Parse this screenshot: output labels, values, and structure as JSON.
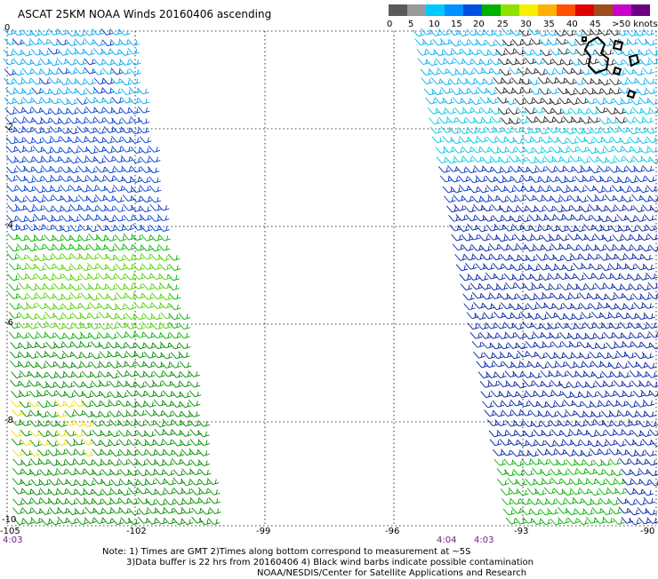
{
  "title": "ASCAT 25KM NOAA Winds 20160406 ascending",
  "legend": {
    "colors": [
      "#5a5a5a",
      "#9a9a9a",
      "#00c8ff",
      "#0090ff",
      "#0050e0",
      "#00b000",
      "#90e000",
      "#f8f000",
      "#ffb000",
      "#ff5000",
      "#e00000",
      "#a04a20",
      "#c800c8",
      "#6a0080"
    ],
    "labels": [
      "0",
      "5",
      "10",
      "15",
      "20",
      "25",
      "30",
      "35",
      "40",
      "45",
      ">50 knots"
    ]
  },
  "axes": {
    "x_ticks": [
      "-105",
      "-102",
      "-99",
      "-96",
      "-93",
      "-90"
    ],
    "y_ticks": [
      "0",
      "-2",
      "-4",
      "-6",
      "-8",
      "-10"
    ]
  },
  "pass_times": [
    "4:03",
    "4:04",
    "4:03"
  ],
  "notes": [
    "Note: 1) Times are GMT 2)Times along bottom correspond to measurement at ~5S",
    "3)Data buffer is 22 hrs from 20160406 4) Black wind barbs indicate possible contamination",
    "NOAA/NESDIS/Center for Satellite Applications and Research"
  ]
}
